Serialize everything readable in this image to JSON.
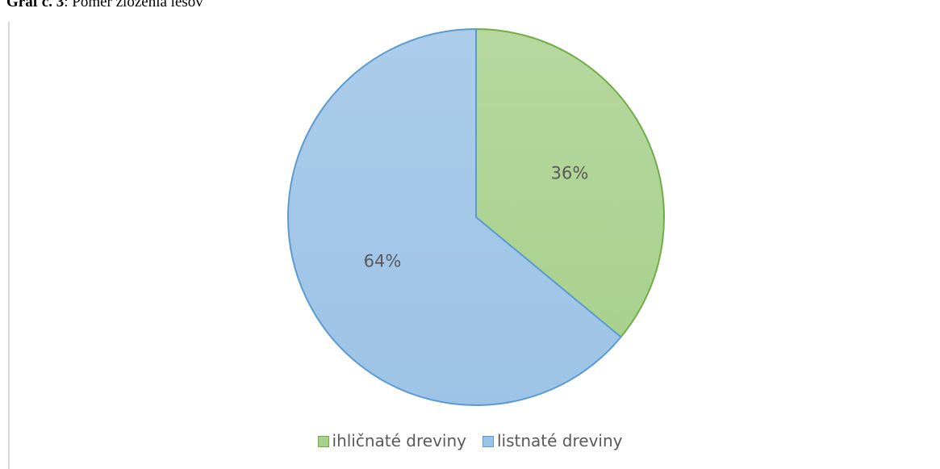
{
  "caption": {
    "prefix": "Graf č. 3",
    "text": ": Pomer zloženia lesov"
  },
  "chart_data": {
    "type": "pie",
    "title": "",
    "slices": [
      {
        "label": "ihličnaté dreviny",
        "value": 36,
        "display": "36%",
        "fill": "#a9d18e",
        "stroke": "#70ad47"
      },
      {
        "label": "listnaté dreviny",
        "value": 64,
        "display": "64%",
        "fill": "#9dc3e6",
        "stroke": "#5b9bd5"
      }
    ],
    "start_angle": "12 o'clock",
    "direction": "clockwise",
    "legend": {
      "position": "bottom",
      "items": [
        "ihličnaté dreviny",
        "listnaté dreviny"
      ]
    },
    "label_color": "#595959"
  }
}
